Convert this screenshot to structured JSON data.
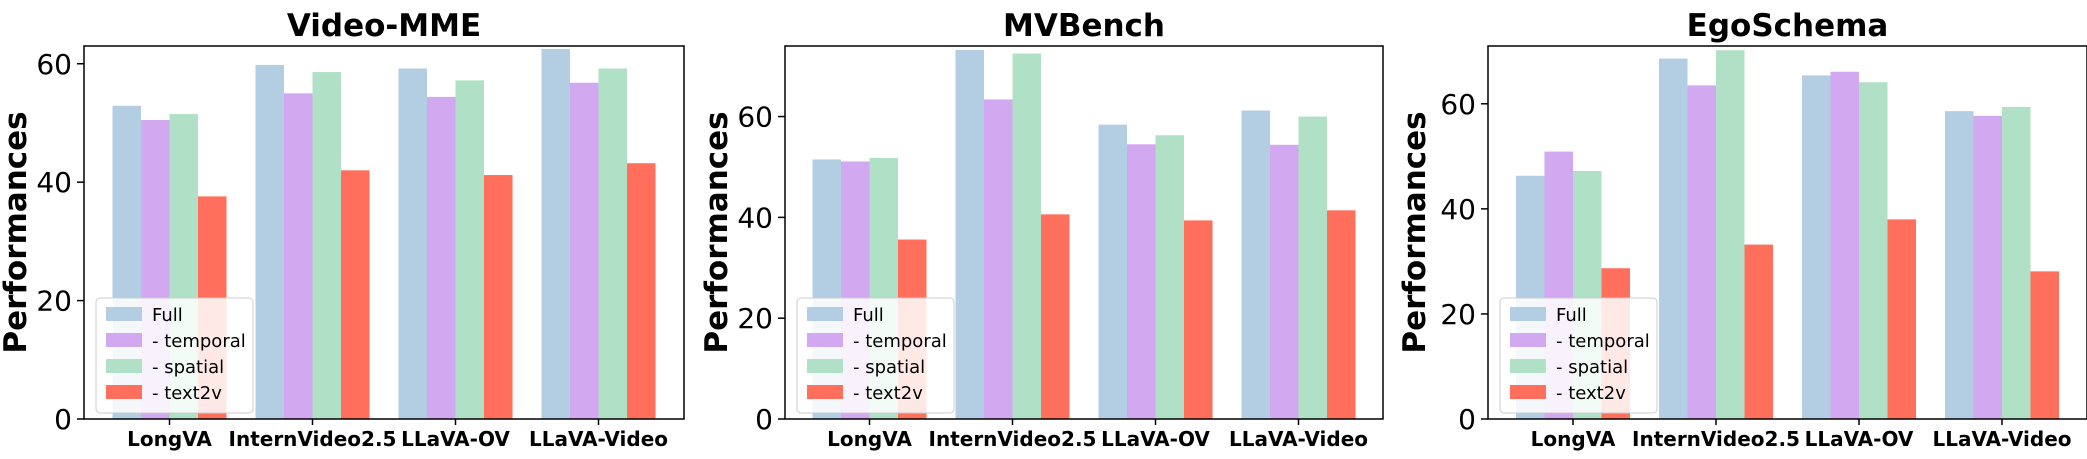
{
  "chart_data": [
    {
      "type": "bar",
      "title": "Video-MME",
      "ylabel": "Performances",
      "xlabel": "",
      "categories": [
        "LongVA",
        "InternVideo2.5",
        "LLaVA-OV",
        "LLaVA-Video"
      ],
      "ylim": [
        0,
        63
      ],
      "yticks": [
        0,
        20,
        40,
        60
      ],
      "legend_position": "lower-left",
      "series": [
        {
          "name": "Full",
          "color": "#b3cde3",
          "values": [
            52.9,
            59.8,
            59.2,
            62.5
          ]
        },
        {
          "name": "- temporal",
          "color": "#d2a9f0",
          "values": [
            50.5,
            55.0,
            54.4,
            56.8
          ]
        },
        {
          "name": "- spatial",
          "color": "#b0e0c6",
          "values": [
            51.5,
            58.6,
            57.2,
            59.2
          ]
        },
        {
          "name": "- text2v",
          "color": "#ff6f5b",
          "values": [
            37.6,
            42.0,
            41.2,
            43.2
          ]
        }
      ]
    },
    {
      "type": "bar",
      "title": "MVBench",
      "ylabel": "Performances",
      "xlabel": "",
      "categories": [
        "LongVA",
        "InternVideo2.5",
        "LLaVA-OV",
        "LLaVA-Video"
      ],
      "ylim": [
        0,
        74
      ],
      "yticks": [
        0,
        20,
        40,
        60
      ],
      "legend_position": "lower-left",
      "series": [
        {
          "name": "Full",
          "color": "#b3cde3",
          "values": [
            51.5,
            73.2,
            58.4,
            61.2
          ]
        },
        {
          "name": "- temporal",
          "color": "#d2a9f0",
          "values": [
            51.1,
            63.4,
            54.5,
            54.4
          ]
        },
        {
          "name": "- spatial",
          "color": "#b0e0c6",
          "values": [
            51.8,
            72.5,
            56.3,
            60.0
          ]
        },
        {
          "name": "- text2v",
          "color": "#ff6f5b",
          "values": [
            35.6,
            40.6,
            39.4,
            41.4
          ]
        }
      ]
    },
    {
      "type": "bar",
      "title": "EgoSchema",
      "ylabel": "Performances",
      "xlabel": "",
      "categories": [
        "LongVA",
        "InternVideo2.5",
        "LLaVA-OV",
        "LLaVA-Video"
      ],
      "ylim": [
        0,
        71
      ],
      "yticks": [
        0,
        20,
        40,
        60
      ],
      "legend_position": "lower-left",
      "series": [
        {
          "name": "Full",
          "color": "#b3cde3",
          "values": [
            46.3,
            68.6,
            65.4,
            58.6
          ]
        },
        {
          "name": "- temporal",
          "color": "#d2a9f0",
          "values": [
            50.9,
            63.5,
            66.1,
            57.7
          ]
        },
        {
          "name": "- spatial",
          "color": "#b0e0c6",
          "values": [
            47.2,
            70.2,
            64.1,
            59.4
          ]
        },
        {
          "name": "- text2v",
          "color": "#ff6f5b",
          "values": [
            28.7,
            33.2,
            38.0,
            28.1
          ]
        }
      ]
    }
  ]
}
